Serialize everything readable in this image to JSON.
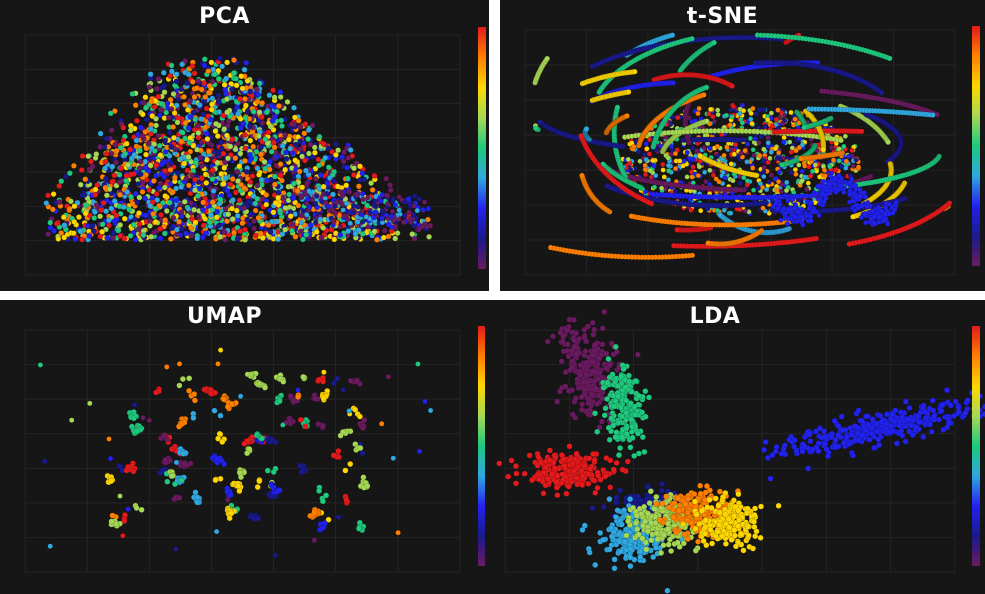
{
  "chart_data": [
    {
      "type": "scatter",
      "title": "PCA",
      "xlabel": "",
      "ylabel": "",
      "xlim": [
        -260,
        300
      ],
      "ylim": [
        -260,
        300
      ],
      "grid": true,
      "colorbar": "rainbow",
      "point_count_approx": 3000,
      "pattern": "dense overlapping mixed-color cloud, wide base narrowing upward, tail extending to lower right"
    },
    {
      "type": "scatter",
      "title": "t-SNE",
      "xlabel": "",
      "ylabel": "",
      "xlim": [
        -10,
        10
      ],
      "ylim": [
        -10,
        10
      ],
      "grid": true,
      "colorbar": "rainbow",
      "point_count_approx": 4000,
      "pattern": "many curved string-like trajectories, each a single color, arcing around a dense center"
    },
    {
      "type": "scatter",
      "title": "UMAP",
      "xlabel": "",
      "ylabel": "",
      "xlim": [
        -10,
        25
      ],
      "ylim": [
        -10,
        25
      ],
      "grid": true,
      "colorbar": "rainbow",
      "point_count_approx": 900,
      "pattern": "many small compact clusters scattered across the plane with colors mixed"
    },
    {
      "type": "scatter",
      "title": "LDA",
      "xlabel": "",
      "ylabel": "",
      "xlim": [
        -10,
        25
      ],
      "ylim": [
        -10,
        25
      ],
      "grid": true,
      "colorbar": "rainbow",
      "clusters": [
        {
          "color": "purple",
          "center": [
            -4,
            17
          ]
        },
        {
          "color": "teal",
          "center": [
            0,
            13
          ]
        },
        {
          "color": "red",
          "center": [
            -5,
            4
          ]
        },
        {
          "color": "blue",
          "center": [
            21,
            10
          ]
        },
        {
          "color": "dark blue",
          "center": [
            2,
            0
          ]
        },
        {
          "color": "light blue",
          "center": [
            1,
            -4
          ]
        },
        {
          "color": "green",
          "center": [
            5,
            -3
          ]
        },
        {
          "color": "orange",
          "center": [
            9,
            -2
          ]
        },
        {
          "color": "yellow",
          "center": [
            12,
            -4
          ]
        }
      ]
    }
  ],
  "colors": {
    "background": "#161616",
    "grid": "#2a2a2a",
    "title": "#ffffff",
    "rainbow": [
      "#e41a1c",
      "#ff7f00",
      "#ffd700",
      "#a6d854",
      "#1fc97e",
      "#30a8e0",
      "#2222ee",
      "#1a1a8c",
      "#6a1b5f"
    ]
  }
}
